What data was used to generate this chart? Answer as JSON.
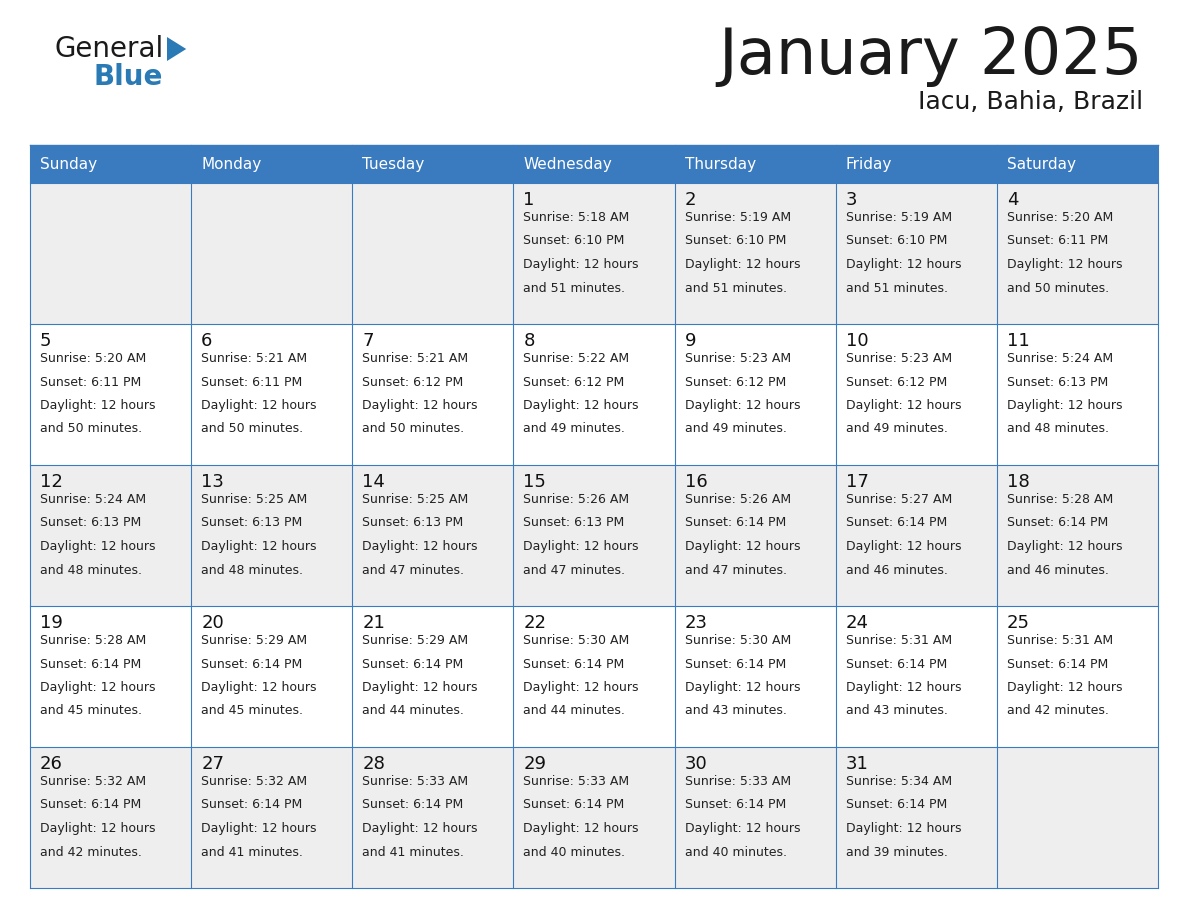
{
  "title": "January 2025",
  "subtitle": "Iacu, Bahia, Brazil",
  "header_color": "#3a7abf",
  "header_text_color": "#ffffff",
  "row_bg_odd": "#eeeeee",
  "row_bg_even": "#ffffff",
  "border_color": "#3a7abf",
  "title_color": "#1a1a1a",
  "subtitle_color": "#1a1a1a",
  "cell_text_color": "#222222",
  "day_num_color": "#111111",
  "logo_black_color": "#1a1a1a",
  "logo_blue_color": "#2a7ab5",
  "days_of_week": [
    "Sunday",
    "Monday",
    "Tuesday",
    "Wednesday",
    "Thursday",
    "Friday",
    "Saturday"
  ],
  "weeks": [
    [
      {
        "day": "",
        "sunrise": "",
        "sunset": "",
        "daylight": ""
      },
      {
        "day": "",
        "sunrise": "",
        "sunset": "",
        "daylight": ""
      },
      {
        "day": "",
        "sunrise": "",
        "sunset": "",
        "daylight": ""
      },
      {
        "day": "1",
        "sunrise": "5:18 AM",
        "sunset": "6:10 PM",
        "daylight": "12 hours",
        "daylight2": "and 51 minutes."
      },
      {
        "day": "2",
        "sunrise": "5:19 AM",
        "sunset": "6:10 PM",
        "daylight": "12 hours",
        "daylight2": "and 51 minutes."
      },
      {
        "day": "3",
        "sunrise": "5:19 AM",
        "sunset": "6:10 PM",
        "daylight": "12 hours",
        "daylight2": "and 51 minutes."
      },
      {
        "day": "4",
        "sunrise": "5:20 AM",
        "sunset": "6:11 PM",
        "daylight": "12 hours",
        "daylight2": "and 50 minutes."
      }
    ],
    [
      {
        "day": "5",
        "sunrise": "5:20 AM",
        "sunset": "6:11 PM",
        "daylight": "12 hours",
        "daylight2": "and 50 minutes."
      },
      {
        "day": "6",
        "sunrise": "5:21 AM",
        "sunset": "6:11 PM",
        "daylight": "12 hours",
        "daylight2": "and 50 minutes."
      },
      {
        "day": "7",
        "sunrise": "5:21 AM",
        "sunset": "6:12 PM",
        "daylight": "12 hours",
        "daylight2": "and 50 minutes."
      },
      {
        "day": "8",
        "sunrise": "5:22 AM",
        "sunset": "6:12 PM",
        "daylight": "12 hours",
        "daylight2": "and 49 minutes."
      },
      {
        "day": "9",
        "sunrise": "5:23 AM",
        "sunset": "6:12 PM",
        "daylight": "12 hours",
        "daylight2": "and 49 minutes."
      },
      {
        "day": "10",
        "sunrise": "5:23 AM",
        "sunset": "6:12 PM",
        "daylight": "12 hours",
        "daylight2": "and 49 minutes."
      },
      {
        "day": "11",
        "sunrise": "5:24 AM",
        "sunset": "6:13 PM",
        "daylight": "12 hours",
        "daylight2": "and 48 minutes."
      }
    ],
    [
      {
        "day": "12",
        "sunrise": "5:24 AM",
        "sunset": "6:13 PM",
        "daylight": "12 hours",
        "daylight2": "and 48 minutes."
      },
      {
        "day": "13",
        "sunrise": "5:25 AM",
        "sunset": "6:13 PM",
        "daylight": "12 hours",
        "daylight2": "and 48 minutes."
      },
      {
        "day": "14",
        "sunrise": "5:25 AM",
        "sunset": "6:13 PM",
        "daylight": "12 hours",
        "daylight2": "and 47 minutes."
      },
      {
        "day": "15",
        "sunrise": "5:26 AM",
        "sunset": "6:13 PM",
        "daylight": "12 hours",
        "daylight2": "and 47 minutes."
      },
      {
        "day": "16",
        "sunrise": "5:26 AM",
        "sunset": "6:14 PM",
        "daylight": "12 hours",
        "daylight2": "and 47 minutes."
      },
      {
        "day": "17",
        "sunrise": "5:27 AM",
        "sunset": "6:14 PM",
        "daylight": "12 hours",
        "daylight2": "and 46 minutes."
      },
      {
        "day": "18",
        "sunrise": "5:28 AM",
        "sunset": "6:14 PM",
        "daylight": "12 hours",
        "daylight2": "and 46 minutes."
      }
    ],
    [
      {
        "day": "19",
        "sunrise": "5:28 AM",
        "sunset": "6:14 PM",
        "daylight": "12 hours",
        "daylight2": "and 45 minutes."
      },
      {
        "day": "20",
        "sunrise": "5:29 AM",
        "sunset": "6:14 PM",
        "daylight": "12 hours",
        "daylight2": "and 45 minutes."
      },
      {
        "day": "21",
        "sunrise": "5:29 AM",
        "sunset": "6:14 PM",
        "daylight": "12 hours",
        "daylight2": "and 44 minutes."
      },
      {
        "day": "22",
        "sunrise": "5:30 AM",
        "sunset": "6:14 PM",
        "daylight": "12 hours",
        "daylight2": "and 44 minutes."
      },
      {
        "day": "23",
        "sunrise": "5:30 AM",
        "sunset": "6:14 PM",
        "daylight": "12 hours",
        "daylight2": "and 43 minutes."
      },
      {
        "day": "24",
        "sunrise": "5:31 AM",
        "sunset": "6:14 PM",
        "daylight": "12 hours",
        "daylight2": "and 43 minutes."
      },
      {
        "day": "25",
        "sunrise": "5:31 AM",
        "sunset": "6:14 PM",
        "daylight": "12 hours",
        "daylight2": "and 42 minutes."
      }
    ],
    [
      {
        "day": "26",
        "sunrise": "5:32 AM",
        "sunset": "6:14 PM",
        "daylight": "12 hours",
        "daylight2": "and 42 minutes."
      },
      {
        "day": "27",
        "sunrise": "5:32 AM",
        "sunset": "6:14 PM",
        "daylight": "12 hours",
        "daylight2": "and 41 minutes."
      },
      {
        "day": "28",
        "sunrise": "5:33 AM",
        "sunset": "6:14 PM",
        "daylight": "12 hours",
        "daylight2": "and 41 minutes."
      },
      {
        "day": "29",
        "sunrise": "5:33 AM",
        "sunset": "6:14 PM",
        "daylight": "12 hours",
        "daylight2": "and 40 minutes."
      },
      {
        "day": "30",
        "sunrise": "5:33 AM",
        "sunset": "6:14 PM",
        "daylight": "12 hours",
        "daylight2": "and 40 minutes."
      },
      {
        "day": "31",
        "sunrise": "5:34 AM",
        "sunset": "6:14 PM",
        "daylight": "12 hours",
        "daylight2": "and 39 minutes."
      },
      {
        "day": "",
        "sunrise": "",
        "sunset": "",
        "daylight": "",
        "daylight2": ""
      }
    ]
  ]
}
